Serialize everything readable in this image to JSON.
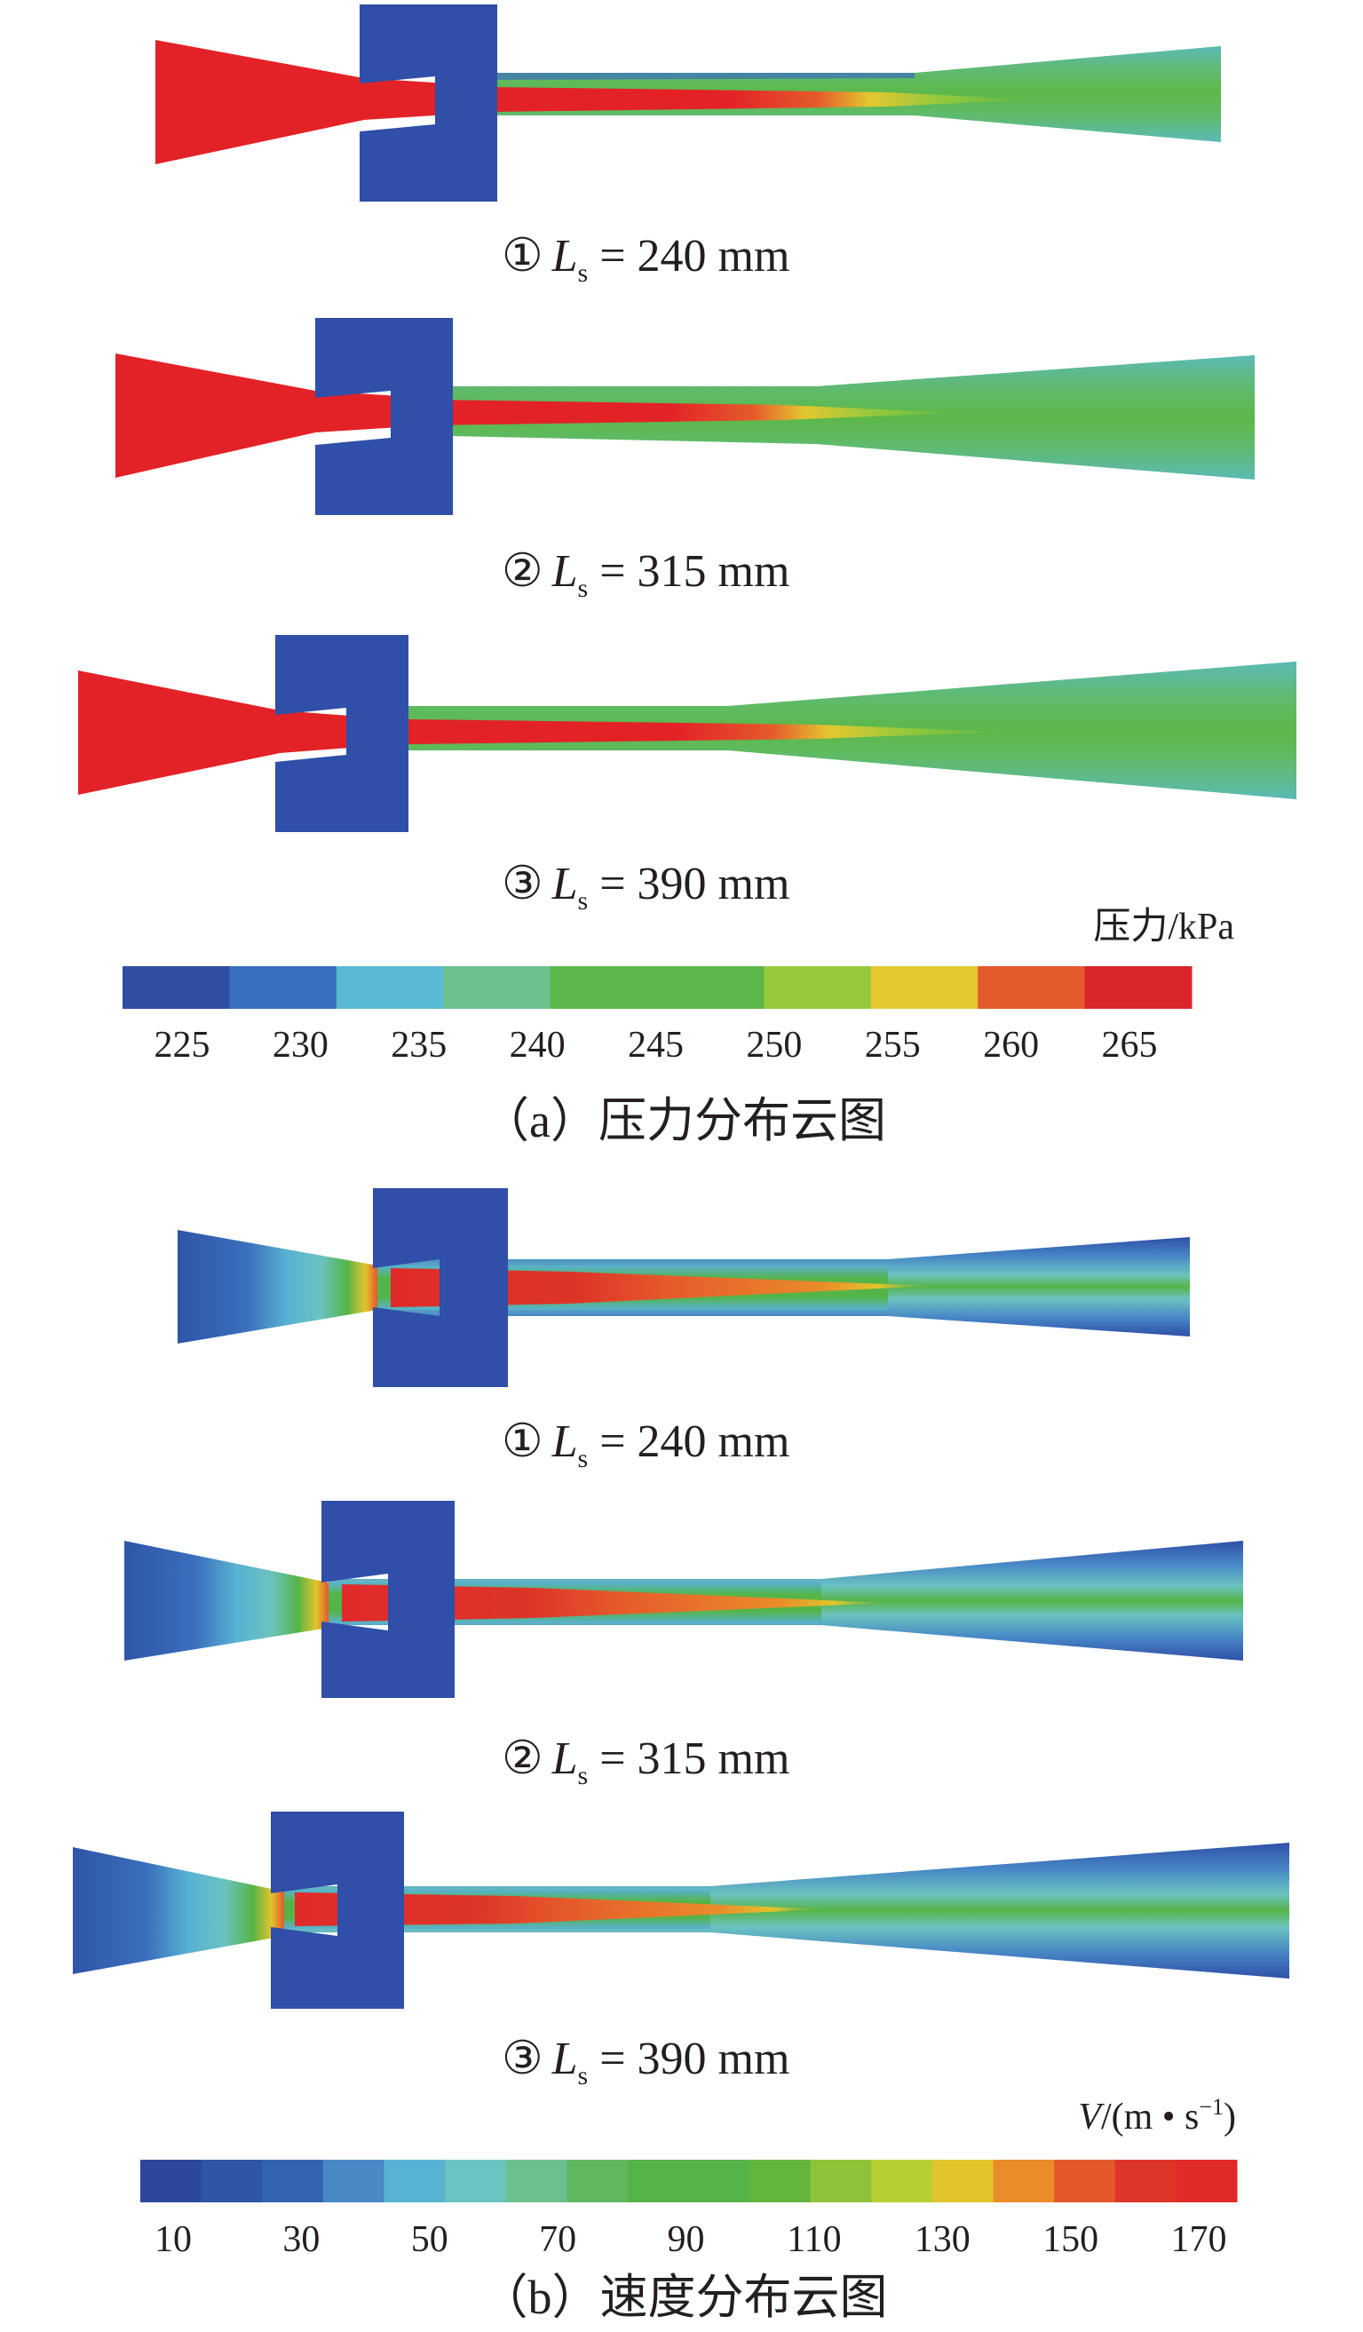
{
  "pressure": {
    "cases": [
      {
        "marker": "①",
        "var": "L",
        "sub": "s",
        "rest": " = 240 mm"
      },
      {
        "marker": "②",
        "var": "L",
        "sub": "s",
        "rest": " = 315 mm"
      },
      {
        "marker": "③",
        "var": "L",
        "sub": "s",
        "rest": " = 390 mm"
      }
    ],
    "colorbar_title": "压力/kPa",
    "ticks": [
      "225",
      "230",
      "235",
      "240",
      "245",
      "250",
      "255",
      "260",
      "265"
    ],
    "colors": [
      "#2e4ea0",
      "#3a6fbd",
      "#5bbad3",
      "#6cc08f",
      "#5cb84a",
      "#5cb84a",
      "#97c93c",
      "#e3c830",
      "#e55a2b",
      "#d9252b"
    ],
    "caption": "（a）压力分布云图"
  },
  "velocity": {
    "cases": [
      {
        "marker": "①",
        "var": "L",
        "sub": "s",
        "rest": " = 240 mm"
      },
      {
        "marker": "②",
        "var": "L",
        "sub": "s",
        "rest": " = 315 mm"
      },
      {
        "marker": "③",
        "var": "L",
        "sub": "s",
        "rest": " = 390 mm"
      }
    ],
    "colorbar_title_var": "V",
    "colorbar_title_rest": "/(m • s",
    "colorbar_title_sup": "−1",
    "colorbar_title_end": ")",
    "ticks": [
      "10",
      "30",
      "50",
      "70",
      "90",
      "110",
      "130",
      "150",
      "170"
    ],
    "colors": [
      "#2d479b",
      "#2f55a6",
      "#3463b2",
      "#4889c6",
      "#58b2d3",
      "#6bc3c0",
      "#6cc08f",
      "#5fb85f",
      "#55b447",
      "#55b447",
      "#64b53d",
      "#8fc33a",
      "#b5d033",
      "#e2c52c",
      "#ea8c2a",
      "#e5582b",
      "#dd3528",
      "#e12a2a"
    ],
    "caption": "（b）速度分布云图"
  },
  "palette": {
    "blue_block": "#2f4fa8",
    "red_core": "#e32227",
    "green": "#5cb84a"
  }
}
